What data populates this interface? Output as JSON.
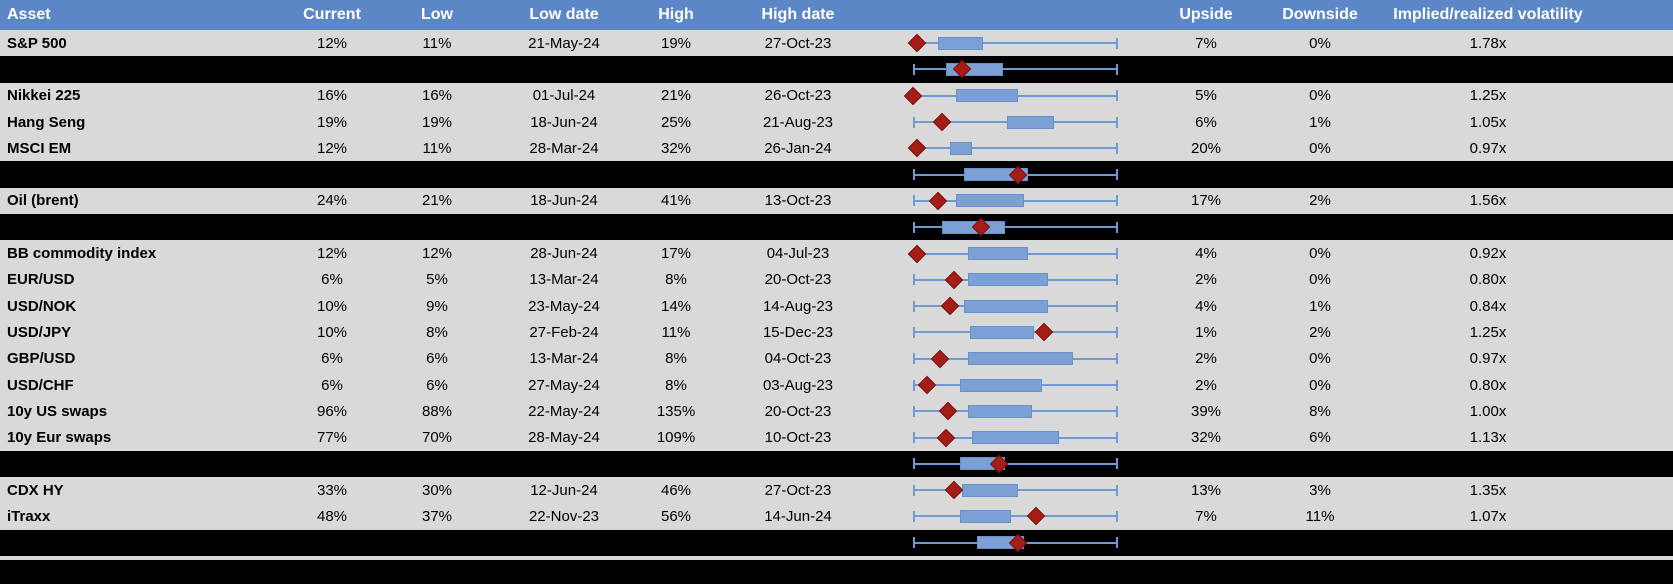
{
  "colors": {
    "header_bg": "#5B87C6",
    "header_text": "#FFFFFF",
    "row_bg": "#D9D9D9",
    "separator_bg": "#000000",
    "box_fill": "#7CA0D4",
    "box_border": "#6991C9",
    "whisker": "#6F99D2",
    "diamond": "#A41D16",
    "diamond_edge": "#7E100D"
  },
  "chart_data": {
    "type": "table",
    "columns": [
      "Asset",
      "Current",
      "Low",
      "Low date",
      "High",
      "High date",
      "Upside",
      "Downside",
      "Implied/realized volatility"
    ],
    "embedded_plot": {
      "type": "boxplot-with-marker",
      "scale_note": "box/whisker/marker positions are percent 0-100 of each row's whisker span (left cap = 0, right cap = 100); diamond marks current level",
      "legend_position": "none",
      "grid": false
    },
    "rows": [
      {
        "kind": "data",
        "asset": "S&P 500",
        "current": "12%",
        "low": "11%",
        "low_date": "21-May-24",
        "high": "19%",
        "high_date": "27-Oct-23",
        "upside": "7%",
        "downside": "0%",
        "impl_real": "1.78x",
        "box": {
          "wlo": 0,
          "q1": 12,
          "q3": 34,
          "whi": 100,
          "marker": 2
        }
      },
      {
        "kind": "separator",
        "box": {
          "wlo": 0,
          "q1": 16,
          "q3": 44,
          "whi": 100,
          "marker": 24
        }
      },
      {
        "kind": "data",
        "asset": "Nikkei 225",
        "current": "16%",
        "low": "16%",
        "low_date": "01-Jul-24",
        "high": "21%",
        "high_date": "26-Oct-23",
        "upside": "5%",
        "downside": "0%",
        "impl_real": "1.25x",
        "box": {
          "wlo": 0,
          "q1": 21,
          "q3": 51,
          "whi": 100,
          "marker": 0
        }
      },
      {
        "kind": "data",
        "asset": "Hang Seng",
        "current": "19%",
        "low": "19%",
        "low_date": "18-Jun-24",
        "high": "25%",
        "high_date": "21-Aug-23",
        "upside": "6%",
        "downside": "1%",
        "impl_real": "1.05x",
        "box": {
          "wlo": 0,
          "q1": 46,
          "q3": 69,
          "whi": 100,
          "marker": 14
        }
      },
      {
        "kind": "data",
        "asset": "MSCI EM",
        "current": "12%",
        "low": "11%",
        "low_date": "28-Mar-24",
        "high": "32%",
        "high_date": "26-Jan-24",
        "upside": "20%",
        "downside": "0%",
        "impl_real": "0.97x",
        "box": {
          "wlo": 0,
          "q1": 18,
          "q3": 29,
          "whi": 100,
          "marker": 2
        }
      },
      {
        "kind": "separator",
        "box": {
          "wlo": 0,
          "q1": 25,
          "q3": 56,
          "whi": 100,
          "marker": 51
        }
      },
      {
        "kind": "data",
        "asset": "Oil (brent)",
        "current": "24%",
        "low": "21%",
        "low_date": "18-Jun-24",
        "high": "41%",
        "high_date": "13-Oct-23",
        "upside": "17%",
        "downside": "2%",
        "impl_real": "1.56x",
        "box": {
          "wlo": 0,
          "q1": 21,
          "q3": 54,
          "whi": 100,
          "marker": 12
        }
      },
      {
        "kind": "separator",
        "box": {
          "wlo": 0,
          "q1": 14,
          "q3": 45,
          "whi": 100,
          "marker": 33
        }
      },
      {
        "kind": "data",
        "asset": "BB commodity index",
        "current": "12%",
        "low": "12%",
        "low_date": "28-Jun-24",
        "high": "17%",
        "high_date": "04-Jul-23",
        "upside": "4%",
        "downside": "0%",
        "impl_real": "0.92x",
        "box": {
          "wlo": 0,
          "q1": 27,
          "q3": 56,
          "whi": 100,
          "marker": 2
        }
      },
      {
        "kind": "data",
        "asset": "EUR/USD",
        "current": "6%",
        "low": "5%",
        "low_date": "13-Mar-24",
        "high": "8%",
        "high_date": "20-Oct-23",
        "upside": "2%",
        "downside": "0%",
        "impl_real": "0.80x",
        "box": {
          "wlo": 0,
          "q1": 27,
          "q3": 66,
          "whi": 100,
          "marker": 20
        }
      },
      {
        "kind": "data",
        "asset": "USD/NOK",
        "current": "10%",
        "low": "9%",
        "low_date": "23-May-24",
        "high": "14%",
        "high_date": "14-Aug-23",
        "upside": "4%",
        "downside": "1%",
        "impl_real": "0.84x",
        "box": {
          "wlo": 0,
          "q1": 25,
          "q3": 66,
          "whi": 100,
          "marker": 18
        }
      },
      {
        "kind": "data",
        "asset": "USD/JPY",
        "current": "10%",
        "low": "8%",
        "low_date": "27-Feb-24",
        "high": "11%",
        "high_date": "15-Dec-23",
        "upside": "1%",
        "downside": "2%",
        "impl_real": "1.25x",
        "box": {
          "wlo": 0,
          "q1": 28,
          "q3": 59,
          "whi": 100,
          "marker": 64
        }
      },
      {
        "kind": "data",
        "asset": "GBP/USD",
        "current": "6%",
        "low": "6%",
        "low_date": "13-Mar-24",
        "high": "8%",
        "high_date": "04-Oct-23",
        "upside": "2%",
        "downside": "0%",
        "impl_real": "0.97x",
        "box": {
          "wlo": 0,
          "q1": 27,
          "q3": 78,
          "whi": 100,
          "marker": 13
        }
      },
      {
        "kind": "data",
        "asset": "USD/CHF",
        "current": "6%",
        "low": "6%",
        "low_date": "27-May-24",
        "high": "8%",
        "high_date": "03-Aug-23",
        "upside": "2%",
        "downside": "0%",
        "impl_real": "0.80x",
        "box": {
          "wlo": 0,
          "q1": 23,
          "q3": 63,
          "whi": 100,
          "marker": 7
        }
      },
      {
        "kind": "data",
        "asset": "10y US swaps",
        "current": "96%",
        "low": "88%",
        "low_date": "22-May-24",
        "high": "135%",
        "high_date": "20-Oct-23",
        "upside": "39%",
        "downside": "8%",
        "impl_real": "1.00x",
        "box": {
          "wlo": 0,
          "q1": 27,
          "q3": 58,
          "whi": 100,
          "marker": 17
        }
      },
      {
        "kind": "data",
        "asset": "10y Eur swaps",
        "current": "77%",
        "low": "70%",
        "low_date": "28-May-24",
        "high": "109%",
        "high_date": "10-Oct-23",
        "upside": "32%",
        "downside": "6%",
        "impl_real": "1.13x",
        "box": {
          "wlo": 0,
          "q1": 29,
          "q3": 71,
          "whi": 100,
          "marker": 16
        }
      },
      {
        "kind": "separator",
        "box": {
          "wlo": 0,
          "q1": 23,
          "q3": 45,
          "whi": 100,
          "marker": 42
        }
      },
      {
        "kind": "data",
        "asset": "CDX HY",
        "current": "33%",
        "low": "30%",
        "low_date": "12-Jun-24",
        "high": "46%",
        "high_date": "27-Oct-23",
        "upside": "13%",
        "downside": "3%",
        "impl_real": "1.35x",
        "box": {
          "wlo": 0,
          "q1": 24,
          "q3": 51,
          "whi": 100,
          "marker": 20
        }
      },
      {
        "kind": "data",
        "asset": "iTraxx",
        "current": "48%",
        "low": "37%",
        "low_date": "22-Nov-23",
        "high": "56%",
        "high_date": "14-Jun-24",
        "upside": "7%",
        "downside": "11%",
        "impl_real": "1.07x",
        "box": {
          "wlo": 0,
          "q1": 23,
          "q3": 48,
          "whi": 100,
          "marker": 60
        }
      },
      {
        "kind": "separator",
        "box": {
          "wlo": 0,
          "q1": 31,
          "q3": 54,
          "whi": 100,
          "marker": 51
        }
      }
    ]
  }
}
